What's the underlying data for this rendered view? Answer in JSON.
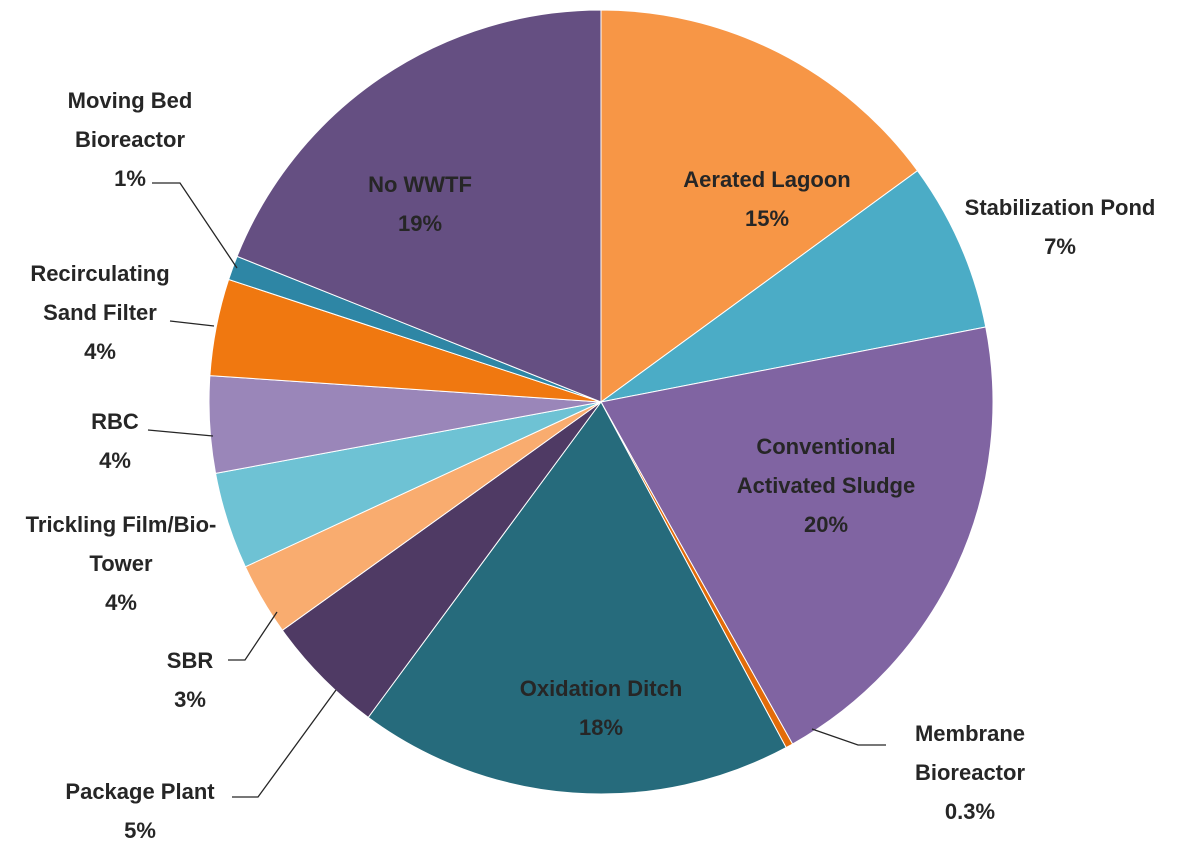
{
  "chart_data": {
    "type": "pie",
    "categories": [
      "Aerated Lagoon",
      "Stabilization Pond",
      "Conventional Activated Sludge",
      "Membrane Bioreactor",
      "Oxidation Ditch",
      "Package Plant",
      "SBR",
      "Trickling Film/Bio-Tower",
      "RBC",
      "Recirculating Sand Filter",
      "Moving Bed Bioreactor",
      "No WWTF"
    ],
    "values": [
      15,
      7,
      20,
      0.3,
      18,
      5,
      3,
      4,
      4,
      4,
      1,
      19
    ],
    "value_labels": [
      "15%",
      "7%",
      "20%",
      "0.3%",
      "18%",
      "5%",
      "3%",
      "4%",
      "4%",
      "4%",
      "1%",
      "19%"
    ],
    "colors": [
      "#f79646",
      "#4bacc6",
      "#8064a2",
      "#e36c09",
      "#266b7c",
      "#4f3a64",
      "#f9ac6f",
      "#6ec2d4",
      "#9a86b9",
      "#f07810",
      "#2e86a5",
      "#654f82"
    ]
  }
}
